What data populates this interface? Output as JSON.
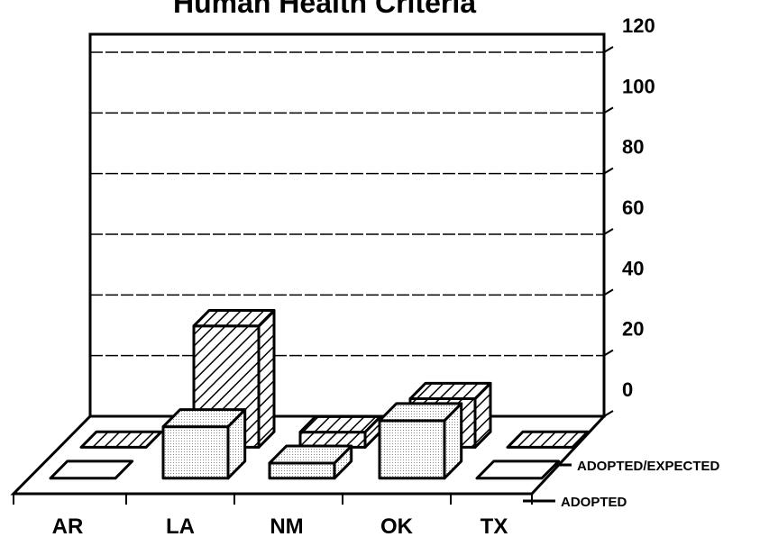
{
  "chart_data": {
    "type": "bar3d",
    "title": "Human Health Criteria",
    "categories": [
      "AR",
      "LA",
      "NM",
      "OK",
      "TX"
    ],
    "series": [
      {
        "name": "ADOPTED/EXPECTED",
        "color": "#000000",
        "values": [
          0,
          40,
          5,
          16,
          0
        ]
      },
      {
        "name": "ADOPTED",
        "color": "#000000",
        "values": [
          0,
          17,
          5,
          19,
          0
        ]
      }
    ],
    "ylim": [
      0,
      120
    ],
    "yticks": [
      0,
      20,
      40,
      60,
      80,
      100,
      120
    ],
    "grid": true
  }
}
